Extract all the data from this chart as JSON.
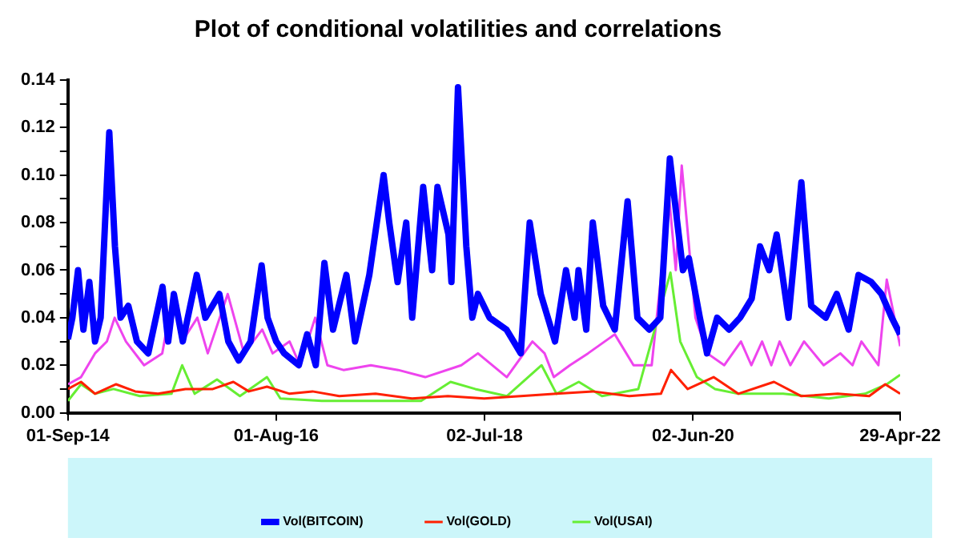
{
  "chart_data": {
    "type": "line",
    "title": "Plot of conditional volatilities and correlations",
    "xlim": [
      "2014-09-01",
      "2022-04-29"
    ],
    "xticks": [
      {
        "value": "2014-09-01",
        "label": "01-Sep-14"
      },
      {
        "value": "2016-08-01",
        "label": "01-Aug-16"
      },
      {
        "value": "2018-07-02",
        "label": "02-Jul-18"
      },
      {
        "value": "2020-06-02",
        "label": "02-Jun-20"
      },
      {
        "value": "2022-04-29",
        "label": "29-Apr-22"
      }
    ],
    "ylim": [
      0,
      0.14
    ],
    "yticks": [
      {
        "value": 0,
        "label": "0.00"
      },
      {
        "value": 0.01,
        "label": null
      },
      {
        "value": 0.02,
        "label": "0.02"
      },
      {
        "value": 0.03,
        "label": null
      },
      {
        "value": 0.04,
        "label": "0.04"
      },
      {
        "value": 0.05,
        "label": null
      },
      {
        "value": 0.06,
        "label": "0.06"
      },
      {
        "value": 0.07,
        "label": null
      },
      {
        "value": 0.08,
        "label": "0.08"
      },
      {
        "value": 0.09,
        "label": null
      },
      {
        "value": 0.1,
        "label": "0.10"
      },
      {
        "value": 0.11,
        "label": null
      },
      {
        "value": 0.12,
        "label": "0.12"
      },
      {
        "value": 0.13,
        "label": null
      },
      {
        "value": 0.14,
        "label": "0.14"
      }
    ],
    "grid": false,
    "legend": "bottom",
    "marker": "none",
    "line_style": "solid",
    "series": [
      {
        "name": "Vol(BITCOIN)",
        "color": "#0000ff",
        "x": [
          "2014-09-01",
          "2014-09-16",
          "2014-10-05",
          "2014-10-23",
          "2014-11-12",
          "2014-12-01",
          "2014-12-20",
          "2015-01-18",
          "2015-02-06",
          "2015-02-25",
          "2015-03-23",
          "2015-04-21",
          "2015-05-29",
          "2015-07-16",
          "2015-08-04",
          "2015-08-23",
          "2015-09-22",
          "2015-11-08",
          "2015-12-07",
          "2016-01-23",
          "2016-02-22",
          "2016-03-28",
          "2016-05-07",
          "2016-06-13",
          "2016-07-03",
          "2016-08-01",
          "2016-08-28",
          "2016-10-16",
          "2016-11-13",
          "2016-12-12",
          "2017-01-10",
          "2017-02-08",
          "2017-03-25",
          "2017-04-23",
          "2017-06-10",
          "2017-07-28",
          "2017-08-16",
          "2017-09-13",
          "2017-10-12",
          "2017-11-01",
          "2017-12-08",
          "2018-01-07",
          "2018-01-25",
          "2018-03-03",
          "2018-03-13",
          "2018-04-04",
          "2018-05-02",
          "2018-05-22",
          "2018-06-10",
          "2018-07-19",
          "2018-09-14",
          "2018-11-01",
          "2018-12-01",
          "2019-01-07",
          "2019-02-24",
          "2019-04-02",
          "2019-05-01",
          "2019-05-14",
          "2019-06-09",
          "2019-07-01",
          "2019-08-05",
          "2019-09-13",
          "2019-10-26",
          "2019-11-28",
          "2020-01-07",
          "2020-02-13",
          "2020-03-16",
          "2020-04-10",
          "2020-04-29",
          "2020-05-19",
          "2020-06-25",
          "2020-07-19",
          "2020-08-22",
          "2020-10-01",
          "2020-11-07",
          "2020-12-16",
          "2021-01-13",
          "2021-02-13",
          "2021-03-10",
          "2021-04-19",
          "2021-06-01",
          "2021-07-04",
          "2021-08-22",
          "2021-09-28",
          "2021-11-07",
          "2021-12-10",
          "2022-01-22",
          "2022-02-25",
          "2022-04-01",
          "2022-04-29"
        ],
        "values": [
          0.031,
          0.04,
          0.06,
          0.035,
          0.055,
          0.03,
          0.04,
          0.118,
          0.07,
          0.04,
          0.045,
          0.03,
          0.025,
          0.053,
          0.03,
          0.05,
          0.03,
          0.058,
          0.04,
          0.05,
          0.03,
          0.022,
          0.03,
          0.062,
          0.04,
          0.03,
          0.025,
          0.02,
          0.033,
          0.02,
          0.063,
          0.035,
          0.058,
          0.03,
          0.058,
          0.1,
          0.08,
          0.055,
          0.08,
          0.04,
          0.095,
          0.06,
          0.095,
          0.075,
          0.055,
          0.137,
          0.07,
          0.04,
          0.05,
          0.04,
          0.035,
          0.025,
          0.08,
          0.05,
          0.03,
          0.06,
          0.04,
          0.06,
          0.035,
          0.08,
          0.045,
          0.035,
          0.089,
          0.04,
          0.035,
          0.04,
          0.107,
          0.08,
          0.06,
          0.065,
          0.04,
          0.025,
          0.04,
          0.035,
          0.04,
          0.048,
          0.07,
          0.06,
          0.075,
          0.04,
          0.097,
          0.045,
          0.04,
          0.05,
          0.035,
          0.058,
          0.055,
          0.05,
          0.04,
          0.033
        ]
      },
      {
        "name": "Vol(GOLD)",
        "color": "#ff2000",
        "x": [
          "2014-09-01",
          "2014-10-15",
          "2014-12-01",
          "2015-02-10",
          "2015-04-15",
          "2015-07-01",
          "2015-10-01",
          "2016-01-01",
          "2016-03-10",
          "2016-05-01",
          "2016-07-01",
          "2016-09-15",
          "2016-12-01",
          "2017-03-01",
          "2017-07-01",
          "2017-11-01",
          "2018-03-01",
          "2018-07-01",
          "2018-11-01",
          "2019-03-01",
          "2019-07-01",
          "2019-11-01",
          "2020-02-15",
          "2020-03-20",
          "2020-05-15",
          "2020-08-10",
          "2020-11-01",
          "2021-03-01",
          "2021-06-01",
          "2021-10-01",
          "2022-01-15",
          "2022-03-10",
          "2022-04-29"
        ],
        "values": [
          0.01,
          0.013,
          0.008,
          0.012,
          0.009,
          0.008,
          0.01,
          0.01,
          0.013,
          0.009,
          0.011,
          0.008,
          0.009,
          0.007,
          0.008,
          0.006,
          0.007,
          0.006,
          0.007,
          0.008,
          0.009,
          0.007,
          0.008,
          0.018,
          0.01,
          0.015,
          0.008,
          0.013,
          0.007,
          0.008,
          0.007,
          0.012,
          0.008
        ]
      },
      {
        "name": "Vol(USAI)",
        "color": "#66ee33",
        "x": [
          "2014-09-01",
          "2014-10-15",
          "2014-12-01",
          "2015-02-01",
          "2015-05-01",
          "2015-08-15",
          "2015-09-20",
          "2015-11-01",
          "2016-01-15",
          "2016-04-01",
          "2016-07-01",
          "2016-08-15",
          "2017-01-01",
          "2017-06-01",
          "2017-12-01",
          "2018-03-10",
          "2018-06-01",
          "2018-09-15",
          "2019-01-10",
          "2019-03-01",
          "2019-05-15",
          "2019-08-01",
          "2019-12-01",
          "2020-03-18",
          "2020-04-20",
          "2020-06-15",
          "2020-08-15",
          "2020-11-01",
          "2021-04-01",
          "2021-09-01",
          "2022-01-01",
          "2022-03-15",
          "2022-04-29"
        ],
        "values": [
          0.005,
          0.012,
          0.008,
          0.01,
          0.007,
          0.008,
          0.02,
          0.008,
          0.014,
          0.007,
          0.015,
          0.006,
          0.005,
          0.005,
          0.005,
          0.013,
          0.01,
          0.007,
          0.02,
          0.008,
          0.013,
          0.007,
          0.01,
          0.059,
          0.03,
          0.015,
          0.01,
          0.008,
          0.008,
          0.006,
          0.008,
          0.012,
          0.016
        ]
      },
      {
        "color": "#ee44ee",
        "x": [
          "2014-09-01",
          "2014-10-15",
          "2014-12-01",
          "2015-01-10",
          "2015-02-05",
          "2015-03-15",
          "2015-05-15",
          "2015-07-15",
          "2015-08-20",
          "2015-09-20",
          "2015-11-10",
          "2015-12-15",
          "2016-02-20",
          "2016-04-15",
          "2016-06-15",
          "2016-07-20",
          "2016-09-15",
          "2016-10-20",
          "2016-12-10",
          "2017-01-20",
          "2017-03-15",
          "2017-06-15",
          "2017-09-15",
          "2017-12-15",
          "2018-04-15",
          "2018-06-10",
          "2018-09-15",
          "2018-12-10",
          "2019-01-20",
          "2019-02-20",
          "2019-04-15",
          "2019-06-15",
          "2019-09-13",
          "2019-11-15",
          "2020-01-15",
          "2020-03-14",
          "2020-04-05",
          "2020-04-25",
          "2020-06-10",
          "2020-07-20",
          "2020-09-15",
          "2020-11-10",
          "2020-12-15",
          "2021-01-20",
          "2021-02-20",
          "2021-03-20",
          "2021-04-25",
          "2021-06-10",
          "2021-08-15",
          "2021-10-10",
          "2021-11-20",
          "2021-12-20",
          "2022-02-15",
          "2022-03-15",
          "2022-04-29"
        ],
        "values": [
          0.012,
          0.015,
          0.025,
          0.03,
          0.04,
          0.03,
          0.02,
          0.025,
          0.05,
          0.03,
          0.04,
          0.025,
          0.05,
          0.025,
          0.035,
          0.025,
          0.03,
          0.02,
          0.04,
          0.02,
          0.018,
          0.02,
          0.018,
          0.015,
          0.02,
          0.025,
          0.015,
          0.03,
          0.025,
          0.015,
          0.02,
          0.025,
          0.033,
          0.02,
          0.02,
          0.09,
          0.06,
          0.104,
          0.04,
          0.025,
          0.02,
          0.03,
          0.02,
          0.03,
          0.02,
          0.03,
          0.02,
          0.03,
          0.02,
          0.025,
          0.02,
          0.03,
          0.02,
          0.056,
          0.028
        ]
      }
    ]
  }
}
